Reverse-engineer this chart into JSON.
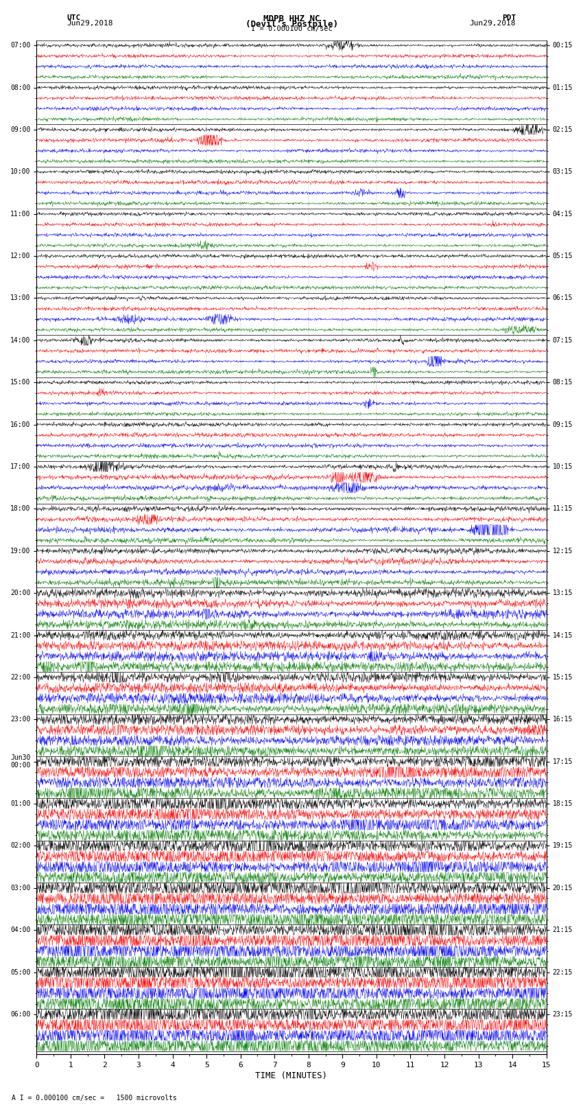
{
  "title_line1": "MDPB HHZ NC",
  "title_line2": "(Devil's Postpile)",
  "scale_label": "I = 0.000100 cm/sec",
  "left_header_line1": "UTC",
  "left_header_line2": "Jun29,2018",
  "right_header_line1": "PDT",
  "right_header_line2": "Jun29,2018",
  "xlabel": "TIME (MINUTES)",
  "footnote": "A I = 0.000100 cm/sec =   1500 microvolts",
  "utc_labels": [
    "07:00",
    "08:00",
    "09:00",
    "10:00",
    "11:00",
    "12:00",
    "13:00",
    "14:00",
    "15:00",
    "16:00",
    "17:00",
    "18:00",
    "19:00",
    "20:00",
    "21:00",
    "22:00",
    "23:00",
    "Jun30\n00:00",
    "01:00",
    "02:00",
    "03:00",
    "04:00",
    "05:00",
    "06:00"
  ],
  "pdt_labels": [
    "00:15",
    "01:15",
    "02:15",
    "03:15",
    "04:15",
    "05:15",
    "06:15",
    "07:15",
    "08:15",
    "09:15",
    "10:15",
    "11:15",
    "12:15",
    "13:15",
    "14:15",
    "15:15",
    "16:15",
    "17:15",
    "18:15",
    "19:15",
    "20:15",
    "21:15",
    "22:15",
    "23:15"
  ],
  "colors": [
    "black",
    "red",
    "blue",
    "green"
  ],
  "n_hours": 24,
  "traces_per_hour": 4,
  "n_minutes": 15,
  "bg_color": "white",
  "grid_color": "#888888",
  "separator_color": "black"
}
